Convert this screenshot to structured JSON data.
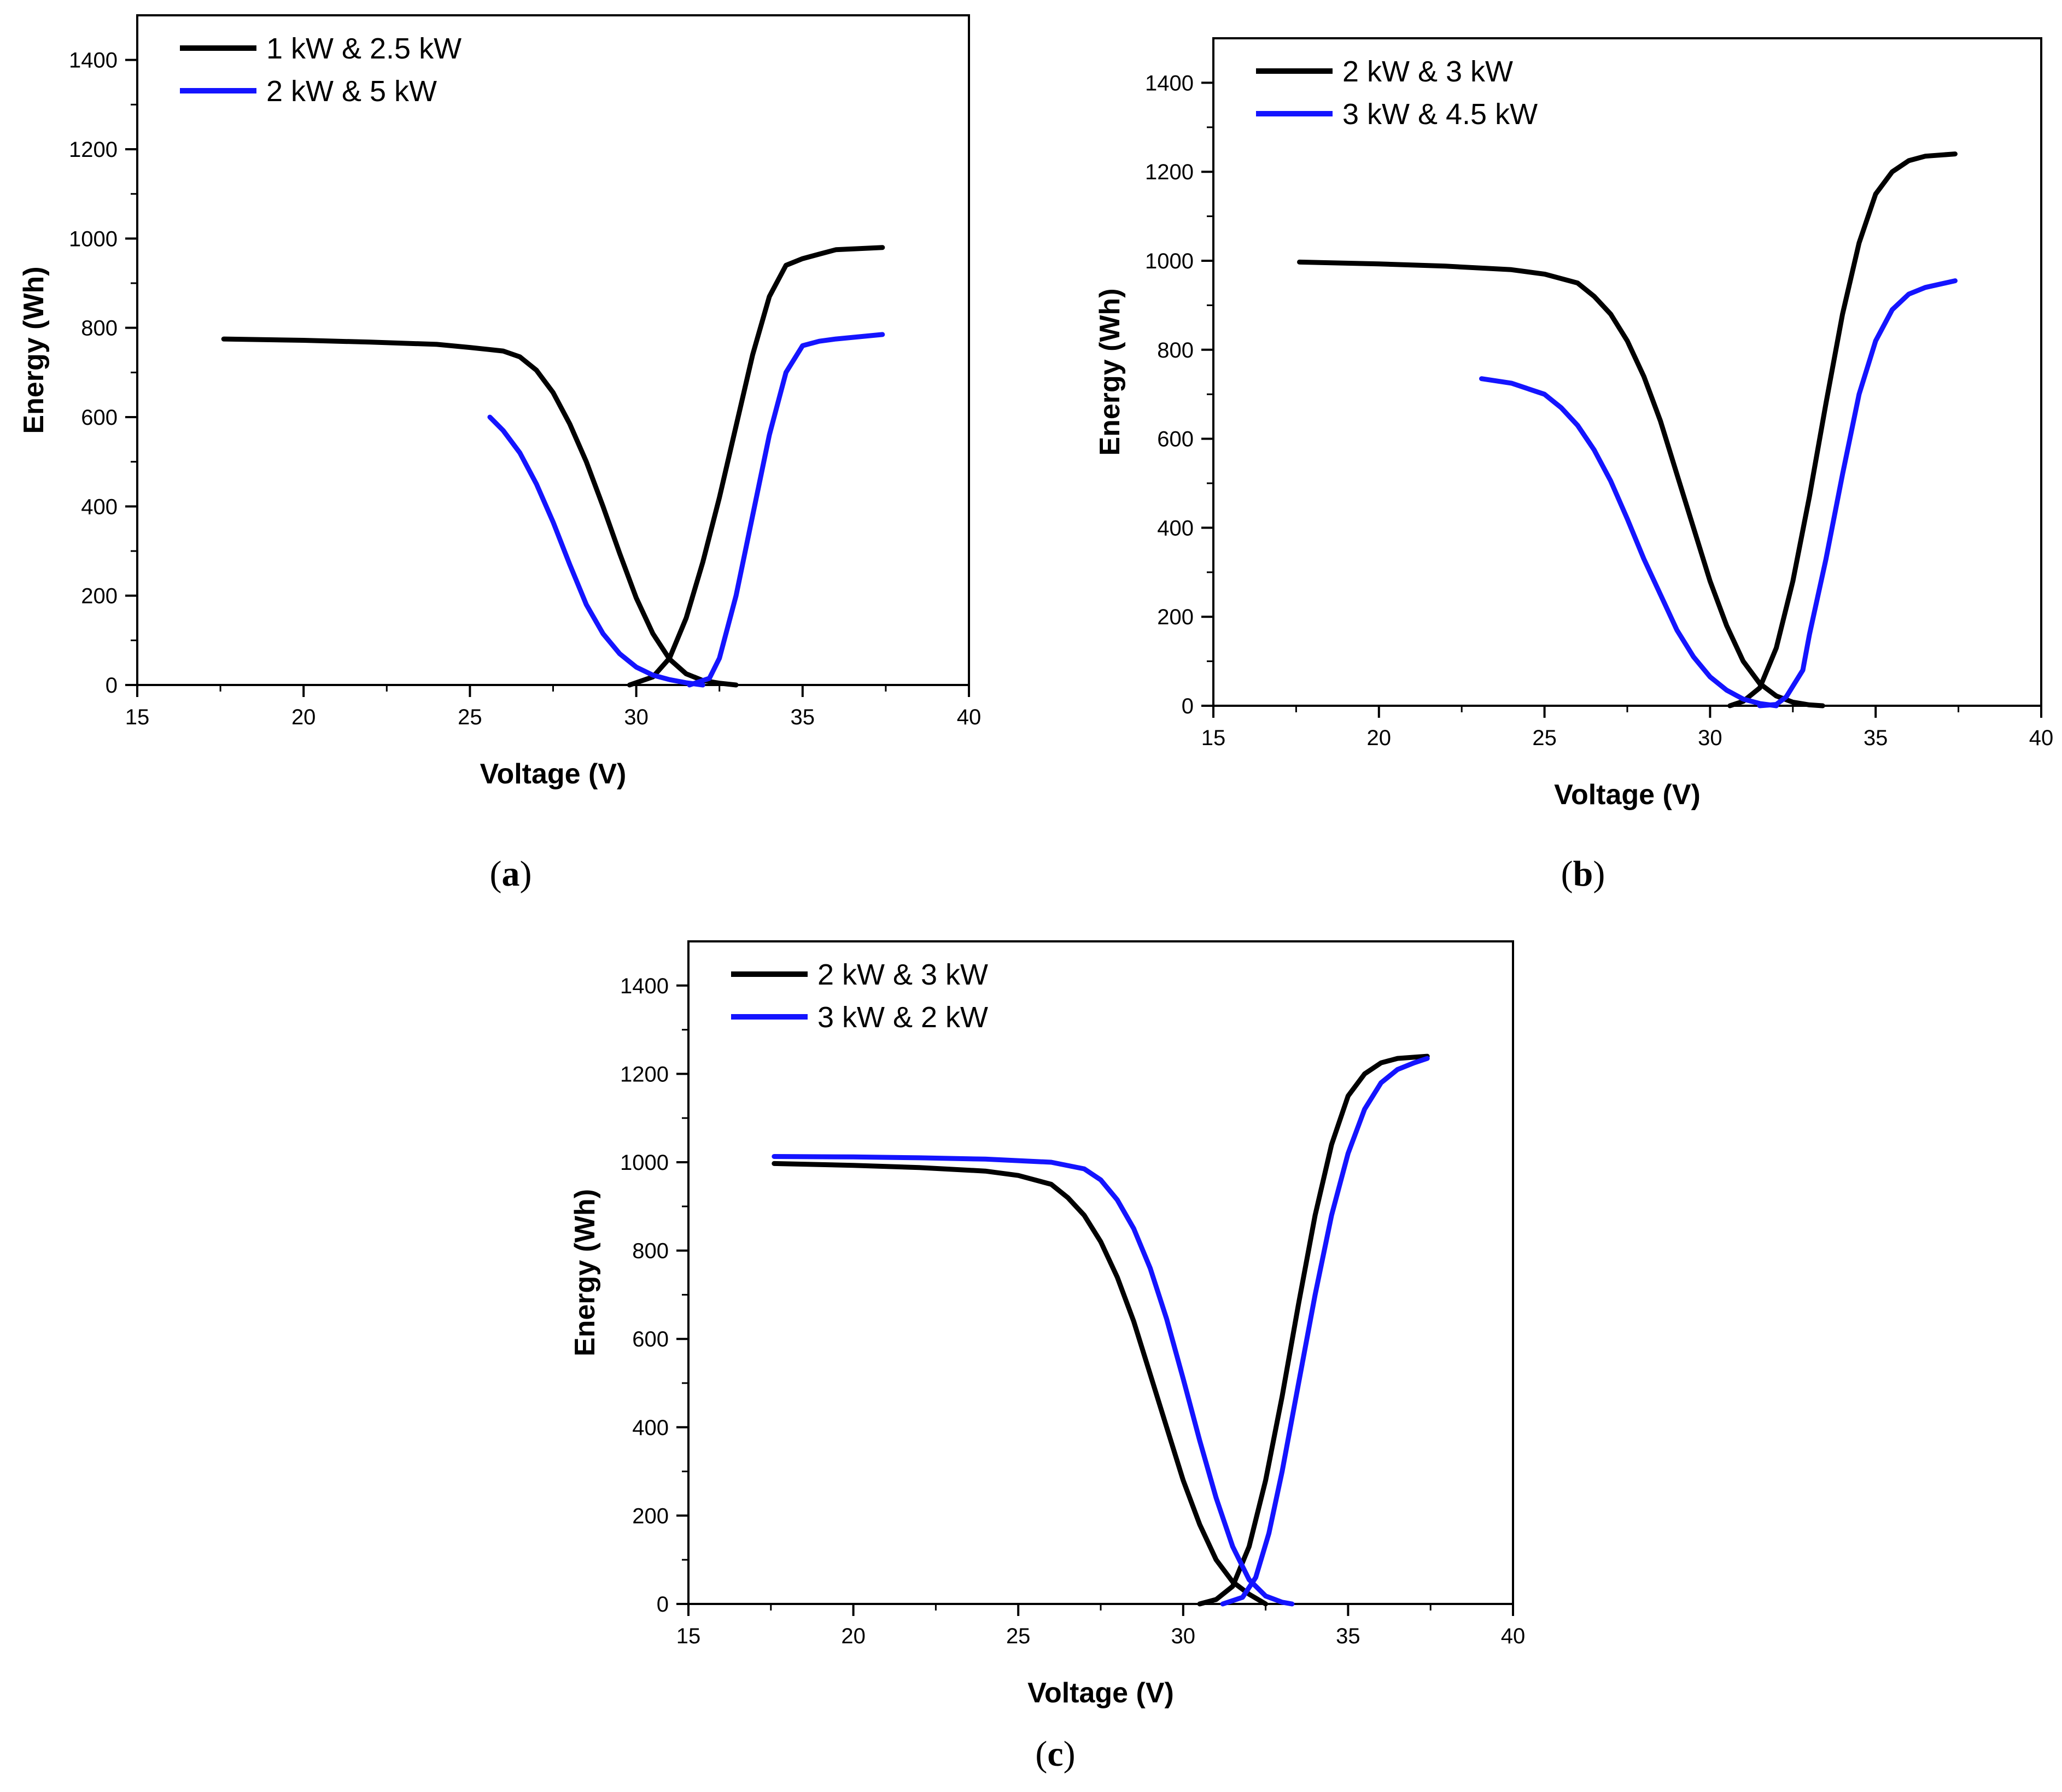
{
  "figure": {
    "colors": {
      "black": "#000000",
      "blue": "#1414ff"
    }
  },
  "chart_data": [
    {
      "type": "line",
      "panel_label": {
        "open": "(",
        "letter": "a",
        "close": ")"
      },
      "xlabel": "Voltage (V)",
      "ylabel": "Energy (Wh)",
      "xlim": [
        15,
        40
      ],
      "ylim": [
        0,
        1500
      ],
      "xticks": [
        15,
        20,
        25,
        30,
        35,
        40
      ],
      "yticks": [
        0,
        200,
        400,
        600,
        800,
        1000,
        1200,
        1400
      ],
      "legend_position": "top-left",
      "series": [
        {
          "name": "1 kW & 2.5 kW",
          "color": "#000000",
          "segments": [
            {
              "x": [
                17.6,
                20,
                22,
                24,
                25,
                26,
                26.5,
                27,
                27.5,
                28,
                28.5,
                29,
                29.5,
                30,
                30.5,
                31,
                31.5,
                32,
                32.5,
                33
              ],
              "y": [
                775,
                772,
                768,
                763,
                756,
                748,
                735,
                705,
                655,
                585,
                500,
                400,
                295,
                195,
                115,
                58,
                25,
                10,
                4,
                0
              ]
            },
            {
              "x": [
                29.8,
                30.5,
                31,
                31.5,
                32,
                32.5,
                33,
                33.5,
                34,
                34.5,
                35,
                35.5,
                36,
                37.4
              ],
              "y": [
                0,
                18,
                60,
                150,
                275,
                420,
                580,
                740,
                870,
                940,
                955,
                965,
                975,
                980
              ]
            }
          ]
        },
        {
          "name": "2 kW & 5 kW",
          "color": "#1414ff",
          "segments": [
            {
              "x": [
                25.6,
                26,
                26.5,
                27,
                27.5,
                28,
                28.5,
                29,
                29.5,
                30,
                30.5,
                31,
                31.5,
                32
              ],
              "y": [
                600,
                570,
                520,
                450,
                365,
                270,
                180,
                115,
                70,
                40,
                22,
                12,
                5,
                0
              ]
            },
            {
              "x": [
                31.6,
                32.2,
                32.5,
                33,
                33.5,
                34,
                34.5,
                35,
                35.5,
                36,
                37.4
              ],
              "y": [
                0,
                15,
                60,
                200,
                380,
                560,
                700,
                760,
                770,
                775,
                785
              ]
            }
          ]
        }
      ]
    },
    {
      "type": "line",
      "panel_label": {
        "open": "(",
        "letter": "b",
        "close": ")"
      },
      "xlabel": "Voltage (V)",
      "ylabel": "Energy (Wh)",
      "xlim": [
        15,
        40
      ],
      "ylim": [
        0,
        1500
      ],
      "xticks": [
        15,
        20,
        25,
        30,
        35,
        40
      ],
      "yticks": [
        0,
        200,
        400,
        600,
        800,
        1000,
        1200,
        1400
      ],
      "legend_position": "top-left",
      "series": [
        {
          "name": "2 kW & 3 kW",
          "color": "#000000",
          "segments": [
            {
              "x": [
                17.6,
                20,
                22,
                24,
                25,
                26,
                26.5,
                27,
                27.5,
                28,
                28.5,
                29,
                29.5,
                30,
                30.5,
                31,
                31.5,
                32,
                32.5,
                33,
                33.4
              ],
              "y": [
                997,
                993,
                988,
                980,
                970,
                950,
                920,
                880,
                820,
                740,
                640,
                520,
                400,
                280,
                180,
                100,
                50,
                22,
                8,
                2,
                0
              ]
            },
            {
              "x": [
                30.6,
                31,
                31.5,
                32,
                32.5,
                33,
                33.5,
                34,
                34.5,
                35,
                35.5,
                36,
                36.5,
                37.4
              ],
              "y": [
                0,
                10,
                40,
                130,
                280,
                470,
                680,
                880,
                1040,
                1150,
                1200,
                1225,
                1235,
                1240
              ]
            }
          ]
        },
        {
          "name": "3 kW & 4.5 kW",
          "color": "#1414ff",
          "segments": [
            {
              "x": [
                23.1,
                24,
                25,
                25.5,
                26,
                26.5,
                27,
                27.5,
                28,
                28.5,
                29,
                29.5,
                30,
                30.5,
                31,
                31.5,
                32
              ],
              "y": [
                735,
                725,
                700,
                670,
                630,
                575,
                505,
                420,
                330,
                250,
                170,
                110,
                65,
                35,
                15,
                5,
                0
              ]
            },
            {
              "x": [
                31.5,
                32,
                32.3,
                32.8,
                33,
                33.5,
                34,
                34.5,
                35,
                35.5,
                36,
                36.5,
                37.4
              ],
              "y": [
                0,
                3,
                20,
                80,
                160,
                330,
                520,
                700,
                820,
                890,
                925,
                940,
                955
              ]
            }
          ]
        }
      ]
    },
    {
      "type": "line",
      "panel_label": {
        "open": "(",
        "letter": "c",
        "close": ")"
      },
      "xlabel": "Voltage (V)",
      "ylabel": "Energy (Wh)",
      "xlim": [
        15,
        40
      ],
      "ylim": [
        0,
        1500
      ],
      "xticks": [
        15,
        20,
        25,
        30,
        35,
        40
      ],
      "yticks": [
        0,
        200,
        400,
        600,
        800,
        1000,
        1200,
        1400
      ],
      "legend_position": "top-left",
      "series": [
        {
          "name": "2 kW & 3 kW",
          "color": "#000000",
          "segments": [
            {
              "x": [
                17.6,
                20,
                22,
                24,
                25,
                26,
                26.5,
                27,
                27.5,
                28,
                28.5,
                29,
                29.5,
                30,
                30.5,
                31,
                31.5,
                32,
                32.5
              ],
              "y": [
                997,
                993,
                988,
                980,
                970,
                950,
                920,
                880,
                820,
                740,
                640,
                520,
                400,
                280,
                180,
                100,
                50,
                22,
                0
              ]
            },
            {
              "x": [
                30.5,
                31,
                31.5,
                32,
                32.5,
                33,
                33.5,
                34,
                34.5,
                35,
                35.5,
                36,
                36.5,
                37.4
              ],
              "y": [
                0,
                10,
                40,
                130,
                280,
                470,
                680,
                880,
                1040,
                1150,
                1200,
                1225,
                1235,
                1240
              ]
            }
          ]
        },
        {
          "name": "3 kW & 2 kW",
          "color": "#1414ff",
          "segments": [
            {
              "x": [
                17.6,
                20,
                22,
                24,
                26,
                27,
                27.5,
                28,
                28.5,
                29,
                29.5,
                30,
                30.5,
                31,
                31.5,
                32,
                32.5,
                33,
                33.3
              ],
              "y": [
                1013,
                1012,
                1010,
                1007,
                1000,
                985,
                960,
                915,
                850,
                760,
                645,
                510,
                370,
                240,
                130,
                55,
                18,
                4,
                0
              ]
            },
            {
              "x": [
                31.2,
                31.8,
                32.2,
                32.6,
                33,
                33.5,
                34,
                34.5,
                35,
                35.5,
                36,
                36.5,
                37,
                37.4
              ],
              "y": [
                0,
                15,
                60,
                160,
                300,
                500,
                700,
                880,
                1020,
                1120,
                1180,
                1210,
                1225,
                1235
              ]
            }
          ]
        }
      ]
    }
  ]
}
